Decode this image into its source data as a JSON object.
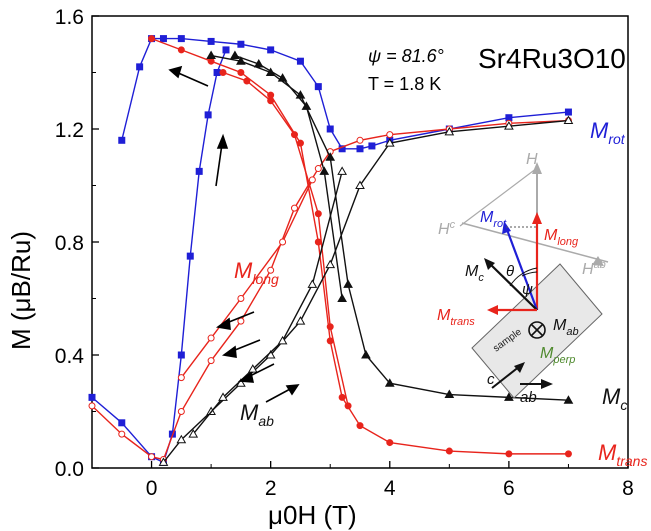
{
  "chart_data": {
    "type": "line",
    "title": "Sr4Ru3O10",
    "annotation_psi": "ψ = 81.6°",
    "annotation_T": "T = 1.8 K",
    "xlabel": "μ0H (T)",
    "ylabel": "M (μB/Ru)",
    "xlim": [
      -1,
      8
    ],
    "ylim": [
      0,
      1.6
    ],
    "xticks": [
      0,
      2,
      4,
      6,
      8
    ],
    "xtick_labels": [
      "0",
      "2",
      "4",
      "6",
      "8"
    ],
    "yticks": [
      0,
      0.4,
      0.8,
      1.2,
      1.6
    ],
    "ytick_labels": [
      "0.0",
      "0.4",
      "0.8",
      "1.2",
      "1.6"
    ],
    "legend": "none (series labeled inline)",
    "grid": false,
    "colors": {
      "rot": "#1f1fd6",
      "long": "#e8241c",
      "trans": "#e8241c",
      "c": "#111111",
      "ab": "#111111",
      "perp": "#4f8a2e",
      "field": "#aaaaaa"
    },
    "series": [
      {
        "name": "Mrot",
        "color": "#1f1fd6",
        "marker": "square-filled",
        "x": [
          -1.0,
          -0.5,
          0.0,
          0.2,
          0.35,
          0.5,
          0.65,
          0.8,
          0.95,
          1.1,
          1.25
        ],
        "y": [
          0.25,
          0.16,
          0.04,
          0.02,
          0.12,
          0.4,
          0.75,
          1.05,
          1.25,
          1.4,
          1.48
        ],
        "x2": [
          7.0,
          6.0,
          5.0,
          4.0,
          3.7,
          3.5,
          3.2,
          3.0,
          2.8,
          2.5,
          2.0,
          1.5,
          1.0,
          0.5,
          0.2,
          0.0,
          -0.2,
          -0.5
        ],
        "y2": [
          1.26,
          1.24,
          1.2,
          1.16,
          1.14,
          1.13,
          1.13,
          1.2,
          1.35,
          1.44,
          1.48,
          1.5,
          1.51,
          1.52,
          1.52,
          1.52,
          1.42,
          1.16
        ]
      },
      {
        "name": "Mlong",
        "color": "#e8241c",
        "marker": "circle-open",
        "x": [
          -1.0,
          -0.5,
          0.0,
          0.2,
          0.5,
          1.0,
          1.5,
          2.0,
          2.4,
          2.8,
          3.0,
          3.5,
          4.0,
          5.0,
          6.0,
          7.0
        ],
        "y": [
          0.22,
          0.12,
          0.04,
          0.03,
          0.2,
          0.38,
          0.52,
          0.7,
          0.92,
          1.06,
          1.12,
          1.16,
          1.18,
          1.2,
          1.22,
          1.23
        ],
        "x2": [
          2.7,
          2.2,
          1.5,
          1.0,
          0.5
        ],
        "y2": [
          1.02,
          0.8,
          0.6,
          0.46,
          0.32
        ]
      },
      {
        "name": "Mtrans",
        "color": "#e8241c",
        "marker": "circle-filled",
        "x": [
          0.0,
          0.5,
          1.0,
          1.5,
          2.0,
          2.5,
          2.8,
          3.0,
          3.2,
          3.5,
          4.0,
          5.0,
          6.0,
          7.0
        ],
        "y": [
          1.52,
          1.48,
          1.44,
          1.4,
          1.32,
          1.15,
          0.8,
          0.45,
          0.25,
          0.15,
          0.09,
          0.06,
          0.05,
          0.05
        ],
        "x2": [
          1.2,
          1.6,
          2.0,
          2.4,
          2.8,
          3.0,
          3.3
        ],
        "y2": [
          1.4,
          1.37,
          1.3,
          1.18,
          0.9,
          0.5,
          0.22
        ]
      },
      {
        "name": "Mc",
        "color": "#111111",
        "marker": "triangle-filled",
        "x": [
          1.0,
          1.5,
          2.0,
          2.5,
          3.0,
          3.3,
          3.6,
          4.0,
          5.0,
          6.0,
          7.0
        ],
        "y": [
          1.46,
          1.44,
          1.4,
          1.32,
          1.1,
          0.65,
          0.4,
          0.3,
          0.26,
          0.25,
          0.24
        ],
        "x2": [
          1.4,
          1.8,
          2.2,
          2.6,
          2.9,
          3.2
        ],
        "y2": [
          1.46,
          1.43,
          1.38,
          1.28,
          1.05,
          0.6
        ]
      },
      {
        "name": "Mab",
        "color": "#111111",
        "marker": "triangle-open",
        "x": [
          0.2,
          0.5,
          1.0,
          1.5,
          2.0,
          2.5,
          3.0,
          3.5,
          4.0,
          5.0,
          6.0,
          7.0
        ],
        "y": [
          0.02,
          0.1,
          0.2,
          0.3,
          0.4,
          0.52,
          0.72,
          1.0,
          1.15,
          1.19,
          1.21,
          1.23
        ],
        "x2": [
          3.2,
          2.7,
          2.2,
          1.7,
          1.2,
          0.7
        ],
        "y2": [
          1.05,
          0.65,
          0.45,
          0.35,
          0.25,
          0.12
        ]
      }
    ],
    "series_labels": {
      "rot_main": "M",
      "rot_sub": "rot",
      "long_main": "M",
      "long_sub": "long",
      "trans_main": "M",
      "trans_sub": "trans",
      "c_main": "M",
      "c_sub": "c",
      "ab_main": "M",
      "ab_sub": "ab"
    },
    "inset": {
      "H": "H",
      "Hc": "H",
      "Hc_sup": "c",
      "Hab": "H",
      "Hab_sup": "ab",
      "Mrot": "M",
      "Mrot_sub": "rot",
      "Mlong": "M",
      "Mlong_sub": "long",
      "Mc": "M",
      "Mc_sub": "c",
      "theta": "θ",
      "psi": "ψ",
      "Mtrans": "M",
      "Mtrans_sub": "trans",
      "Mab": "M",
      "Mab_sub": "ab",
      "sample": "sample",
      "Mperp": "M",
      "Mperp_sub": "perp",
      "c": "c",
      "ab": "ab"
    }
  }
}
